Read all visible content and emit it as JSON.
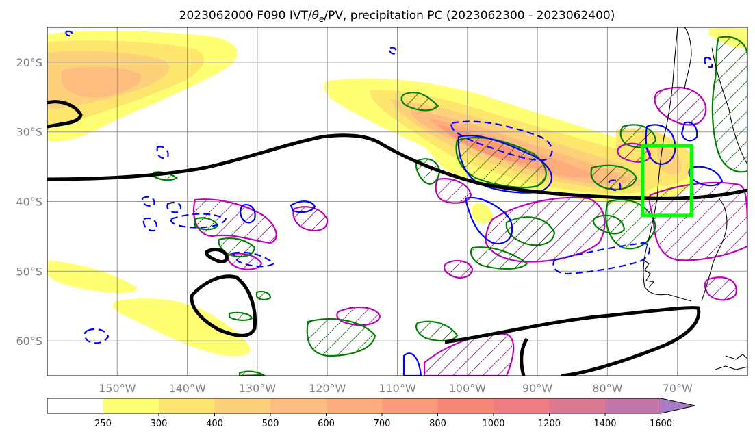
{
  "title": {
    "prefix": "2023062000 F090 IVT/",
    "theta": "θ",
    "sub": "e",
    "suffix": "/PV, precipitation PC (2023062300 - 2023062400)"
  },
  "map": {
    "lon_range": [
      -160,
      -60
    ],
    "lat_range": [
      -65,
      -15
    ],
    "grid": true,
    "lon_ticks": [
      {
        "value": -150,
        "label": "150°W"
      },
      {
        "value": -140,
        "label": "140°W"
      },
      {
        "value": -130,
        "label": "130°W"
      },
      {
        "value": -120,
        "label": "120°W"
      },
      {
        "value": -110,
        "label": "110°W"
      },
      {
        "value": -100,
        "label": "100°W"
      },
      {
        "value": -90,
        "label": "90°W"
      },
      {
        "value": -80,
        "label": "80°W"
      },
      {
        "value": -70,
        "label": "70°W"
      }
    ],
    "lat_ticks": [
      {
        "value": -20,
        "label": "20°S"
      },
      {
        "value": -30,
        "label": "30°S"
      },
      {
        "value": -40,
        "label": "40°S"
      },
      {
        "value": -50,
        "label": "50°S"
      },
      {
        "value": -60,
        "label": "60°S"
      }
    ],
    "highlight_box": {
      "lon": [
        -75,
        -68
      ],
      "lat": [
        -42,
        -32
      ],
      "color": "#00ff00"
    }
  },
  "colorbar": {
    "levels": [
      "250",
      "300",
      "400",
      "500",
      "600",
      "700",
      "800",
      "1000",
      "1200",
      "1400",
      "1600"
    ],
    "colors": [
      "#ffff73",
      "#fde56e",
      "#fdd17a",
      "#fdbd7f",
      "#fdad7d",
      "#fc9978",
      "#f88676",
      "#ef7c80",
      "#dc7891",
      "#c276a8",
      "#a87bc6"
    ],
    "extend": "max"
  },
  "colors": {
    "pv_contour": "#000000",
    "theta_pos": "#008000",
    "theta_neg": "#0000ff",
    "precip": "#bf00bf",
    "coast": "#000000",
    "grid": "#999999"
  }
}
